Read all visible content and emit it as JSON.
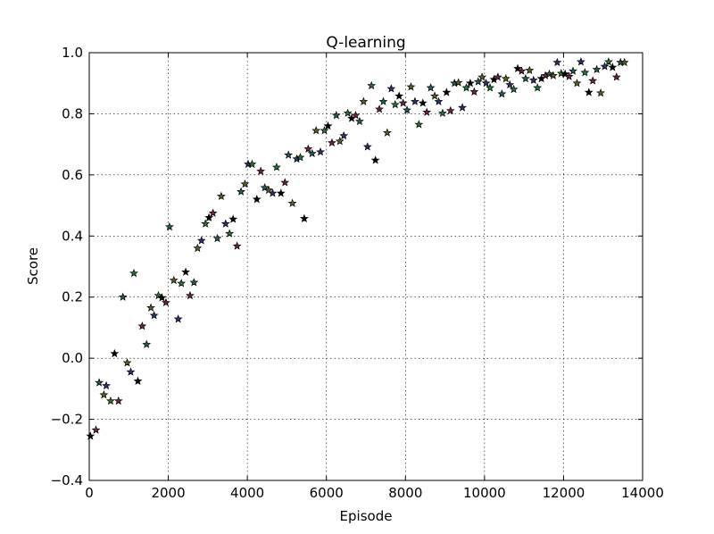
{
  "chart_data": {
    "type": "scatter",
    "title": "Q-learning",
    "xlabel": "Episode",
    "ylabel": "Score",
    "xlim": [
      0,
      14000
    ],
    "ylim": [
      -0.4,
      1.0
    ],
    "xticks": [
      0,
      2000,
      4000,
      6000,
      8000,
      10000,
      12000,
      14000
    ],
    "yticks": [
      -0.4,
      -0.2,
      0.0,
      0.2,
      0.4,
      0.6,
      0.8,
      1.0
    ],
    "xtick_labels": [
      "0",
      "2000",
      "4000",
      "6000",
      "8000",
      "10000",
      "12000",
      "14000"
    ],
    "ytick_labels": [
      "−0.4",
      "−0.2",
      "0.0",
      "0.2",
      "0.4",
      "0.6",
      "0.8",
      "1.0"
    ],
    "grid": true,
    "marker": "star",
    "marker_colors": [
      "#000000",
      "#7a1f3d",
      "#1f5f5f",
      "#5f5f1f",
      "#2f2f7a",
      "#1f7a2f"
    ],
    "points": [
      [
        30,
        -0.255
      ],
      [
        170,
        -0.235
      ],
      [
        250,
        -0.08
      ],
      [
        370,
        -0.12
      ],
      [
        430,
        -0.09
      ],
      [
        540,
        -0.14
      ],
      [
        640,
        0.015
      ],
      [
        740,
        -0.14
      ],
      [
        850,
        0.2
      ],
      [
        960,
        -0.015
      ],
      [
        1050,
        -0.045
      ],
      [
        1130,
        0.278
      ],
      [
        1230,
        -0.075
      ],
      [
        1340,
        0.105
      ],
      [
        1450,
        0.045
      ],
      [
        1560,
        0.165
      ],
      [
        1640,
        0.14
      ],
      [
        1750,
        0.205
      ],
      [
        1840,
        0.198
      ],
      [
        1940,
        0.182
      ],
      [
        2030,
        0.43
      ],
      [
        2140,
        0.255
      ],
      [
        2250,
        0.128
      ],
      [
        2330,
        0.245
      ],
      [
        2440,
        0.282
      ],
      [
        2550,
        0.205
      ],
      [
        2650,
        0.248
      ],
      [
        2740,
        0.36
      ],
      [
        2840,
        0.385
      ],
      [
        2940,
        0.44
      ],
      [
        3030,
        0.46
      ],
      [
        3130,
        0.475
      ],
      [
        3240,
        0.392
      ],
      [
        3340,
        0.53
      ],
      [
        3450,
        0.44
      ],
      [
        3550,
        0.408
      ],
      [
        3640,
        0.455
      ],
      [
        3740,
        0.367
      ],
      [
        3840,
        0.545
      ],
      [
        3940,
        0.57
      ],
      [
        4020,
        0.635
      ],
      [
        4120,
        0.635
      ],
      [
        4240,
        0.52
      ],
      [
        4340,
        0.612
      ],
      [
        4440,
        0.558
      ],
      [
        4540,
        0.55
      ],
      [
        4640,
        0.54
      ],
      [
        4740,
        0.625
      ],
      [
        4850,
        0.54
      ],
      [
        4950,
        0.575
      ],
      [
        5040,
        0.665
      ],
      [
        5140,
        0.507
      ],
      [
        5250,
        0.652
      ],
      [
        5340,
        0.657
      ],
      [
        5440,
        0.457
      ],
      [
        5540,
        0.685
      ],
      [
        5640,
        0.67
      ],
      [
        5740,
        0.745
      ],
      [
        5850,
        0.675
      ],
      [
        5950,
        0.745
      ],
      [
        6040,
        0.76
      ],
      [
        6140,
        0.705
      ],
      [
        6250,
        0.795
      ],
      [
        6340,
        0.71
      ],
      [
        6440,
        0.728
      ],
      [
        6540,
        0.802
      ],
      [
        6640,
        0.785
      ],
      [
        6740,
        0.795
      ],
      [
        6840,
        0.775
      ],
      [
        6940,
        0.84
      ],
      [
        7040,
        0.692
      ],
      [
        7140,
        0.892
      ],
      [
        7240,
        0.648
      ],
      [
        7340,
        0.815
      ],
      [
        7440,
        0.84
      ],
      [
        7540,
        0.738
      ],
      [
        7640,
        0.882
      ],
      [
        7740,
        0.83
      ],
      [
        7840,
        0.858
      ],
      [
        7940,
        0.835
      ],
      [
        8040,
        0.812
      ],
      [
        8140,
        0.888
      ],
      [
        8240,
        0.84
      ],
      [
        8340,
        0.765
      ],
      [
        8440,
        0.835
      ],
      [
        8540,
        0.805
      ],
      [
        8640,
        0.885
      ],
      [
        8740,
        0.858
      ],
      [
        8840,
        0.84
      ],
      [
        8940,
        0.802
      ],
      [
        9040,
        0.87
      ],
      [
        9140,
        0.81
      ],
      [
        9240,
        0.9
      ],
      [
        9340,
        0.902
      ],
      [
        9440,
        0.82
      ],
      [
        9540,
        0.885
      ],
      [
        9640,
        0.9
      ],
      [
        9740,
        0.872
      ],
      [
        9840,
        0.905
      ],
      [
        9940,
        0.92
      ],
      [
        10040,
        0.9
      ],
      [
        10140,
        0.885
      ],
      [
        10240,
        0.912
      ],
      [
        10340,
        0.92
      ],
      [
        10440,
        0.865
      ],
      [
        10540,
        0.915
      ],
      [
        10640,
        0.895
      ],
      [
        10740,
        0.88
      ],
      [
        10840,
        0.948
      ],
      [
        10940,
        0.94
      ],
      [
        11040,
        0.915
      ],
      [
        11140,
        0.942
      ],
      [
        11240,
        0.91
      ],
      [
        11340,
        0.885
      ],
      [
        11440,
        0.915
      ],
      [
        11540,
        0.925
      ],
      [
        11640,
        0.93
      ],
      [
        11740,
        0.925
      ],
      [
        11840,
        0.968
      ],
      [
        11940,
        0.932
      ],
      [
        12040,
        0.93
      ],
      [
        12140,
        0.922
      ],
      [
        12240,
        0.94
      ],
      [
        12340,
        0.9
      ],
      [
        12440,
        0.97
      ],
      [
        12540,
        0.935
      ],
      [
        12640,
        0.87
      ],
      [
        12740,
        0.908
      ],
      [
        12840,
        0.945
      ],
      [
        12940,
        0.868
      ],
      [
        13040,
        0.955
      ],
      [
        13140,
        0.97
      ],
      [
        13240,
        0.952
      ],
      [
        13340,
        0.92
      ],
      [
        13440,
        0.968
      ],
      [
        13540,
        0.968
      ]
    ]
  }
}
